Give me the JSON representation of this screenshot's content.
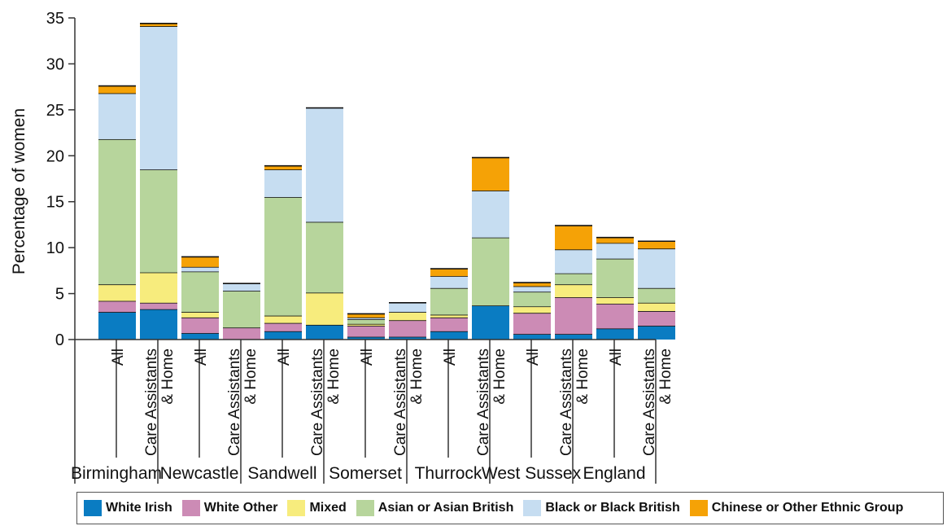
{
  "chart_data": {
    "type": "bar",
    "stacked": true,
    "ylabel": "Percentage of women",
    "ylim": [
      0,
      35
    ],
    "yticks": [
      0,
      5,
      10,
      15,
      20,
      25,
      30,
      35
    ],
    "grid": false,
    "legend_position": "bottom",
    "groups": [
      {
        "name": "Birmingham",
        "bars": [
          "All",
          "Care Assistants & Home"
        ]
      },
      {
        "name": "Newcastle",
        "bars": [
          "All",
          "Care Assistants & Home"
        ]
      },
      {
        "name": "Sandwell",
        "bars": [
          "All",
          "Care Assistants & Home"
        ]
      },
      {
        "name": "Somerset",
        "bars": [
          "All",
          "Care Assistants & Home"
        ]
      },
      {
        "name": "Thurrock",
        "bars": [
          "All",
          "Care Assistants & Home"
        ]
      },
      {
        "name": "West Sussex",
        "bars": [
          "All",
          "Care Assistants & Home"
        ]
      },
      {
        "name": "England",
        "bars": [
          "All",
          "Care Assistants & Home"
        ]
      }
    ],
    "series": [
      {
        "name": "White Irish",
        "color": "#0a7cc2",
        "values": [
          3.0,
          3.3,
          0.7,
          0.0,
          0.9,
          1.6,
          0.3,
          0.3,
          0.9,
          3.7,
          0.6,
          0.6,
          1.2,
          1.5
        ]
      },
      {
        "name": "White Other",
        "color": "#cc8bb5",
        "values": [
          1.2,
          0.7,
          1.7,
          1.3,
          0.9,
          0.0,
          1.2,
          1.8,
          1.5,
          0.0,
          2.3,
          4.0,
          2.7,
          1.6
        ]
      },
      {
        "name": "Mixed",
        "color": "#f7ec7d",
        "values": [
          1.8,
          3.3,
          0.6,
          0.0,
          0.8,
          3.5,
          0.2,
          0.9,
          0.3,
          0.0,
          0.7,
          1.4,
          0.7,
          0.9
        ]
      },
      {
        "name": "Asian or Asian British",
        "color": "#b7d59c",
        "values": [
          15.8,
          11.2,
          4.4,
          4.0,
          12.9,
          7.7,
          0.5,
          0.0,
          2.9,
          7.4,
          1.6,
          1.2,
          4.2,
          1.6
        ]
      },
      {
        "name": "Black or Black British",
        "color": "#c6ddf1",
        "values": [
          5.0,
          15.6,
          0.5,
          0.8,
          3.0,
          12.4,
          0.2,
          1.0,
          1.3,
          5.1,
          0.6,
          2.6,
          1.7,
          4.3
        ]
      },
      {
        "name": "Chinese or Other Ethnic Group",
        "color": "#f5a206",
        "values": [
          0.8,
          0.3,
          1.1,
          0.0,
          0.4,
          0.0,
          0.4,
          0.0,
          0.8,
          3.6,
          0.4,
          2.6,
          0.6,
          0.8
        ]
      }
    ]
  }
}
